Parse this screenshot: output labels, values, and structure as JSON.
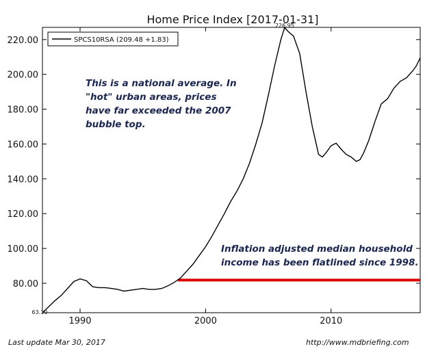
{
  "chart_data": {
    "type": "line",
    "title": "Home Price Index  [2017-01-31]",
    "xlabel": "",
    "ylabel": "",
    "xlim": [
      1987.0,
      2017.1
    ],
    "ylim": [
      63.1,
      227.0
    ],
    "x_ticks": [
      1990,
      2000,
      2010
    ],
    "y_ticks": [
      80,
      100,
      120,
      140,
      160,
      180,
      200,
      220
    ],
    "y_tick_labels": [
      "80.00",
      "100.00",
      "120.00",
      "140.00",
      "160.00",
      "180.00",
      "200.00",
      "220.00"
    ],
    "min_label": "63.10",
    "peak_label": "226.95",
    "grid": false,
    "legend_position": "top-left",
    "series": [
      {
        "name": "SPCS10RSA (209.48 +1.83)",
        "color": "#000000",
        "x": [
          1987.0,
          1987.5,
          1988.0,
          1988.5,
          1989.0,
          1989.5,
          1990.0,
          1990.5,
          1991.0,
          1991.5,
          1992.0,
          1992.5,
          1993.0,
          1993.5,
          1994.0,
          1994.5,
          1995.0,
          1995.5,
          1996.0,
          1996.5,
          1997.0,
          1997.5,
          1998.0,
          1998.5,
          1999.0,
          1999.5,
          2000.0,
          2000.5,
          2001.0,
          2001.5,
          2002.0,
          2002.5,
          2003.0,
          2003.5,
          2004.0,
          2004.5,
          2005.0,
          2005.5,
          2006.0,
          2006.3,
          2006.6,
          2007.0,
          2007.5,
          2008.0,
          2008.5,
          2009.0,
          2009.3,
          2009.6,
          2010.0,
          2010.4,
          2010.8,
          2011.2,
          2011.6,
          2012.0,
          2012.3,
          2012.6,
          2013.0,
          2013.5,
          2014.0,
          2014.5,
          2015.0,
          2015.5,
          2016.0,
          2016.5,
          2016.8,
          2017.1
        ],
        "values": [
          63.1,
          66.5,
          70.0,
          73.0,
          77.0,
          81.0,
          82.5,
          81.5,
          78.0,
          77.5,
          77.5,
          77.0,
          76.5,
          75.5,
          76.0,
          76.5,
          77.0,
          76.5,
          76.5,
          77.0,
          78.5,
          80.5,
          83.0,
          87.0,
          91.0,
          96.0,
          101.0,
          107.0,
          113.5,
          120.0,
          127.0,
          133.0,
          140.0,
          149.0,
          160.0,
          172.0,
          188.0,
          205.0,
          220.0,
          226.9,
          224.5,
          222.0,
          212.0,
          190.0,
          170.0,
          154.0,
          152.5,
          155.0,
          159.0,
          160.5,
          157.0,
          154.0,
          152.5,
          150.0,
          151.0,
          155.0,
          162.0,
          173.0,
          183.0,
          186.0,
          192.0,
          196.0,
          198.0,
          202.0,
          205.0,
          209.48
        ]
      }
    ],
    "reference_line": {
      "y": 81.8,
      "x_start": 1997.8,
      "x_end": 2017.1,
      "color": "#dd0000"
    },
    "annotations": [
      "This is a national average. In \"hot\" urban areas, prices have far exceeded the 2007 bubble top.",
      "Inflation adjusted median household income has been flatlined since 1998."
    ]
  },
  "annotation_lines": {
    "top": [
      "This is a national average. In",
      "\"hot\" urban areas, prices",
      "have far exceeded the 2007",
      "bubble top."
    ],
    "bottom": [
      "Inflation adjusted median household",
      "income has been flatlined since 1998."
    ]
  },
  "footer": {
    "last_update": "Last update Mar 30, 2017",
    "source": "http://www.mdbriefing.com"
  }
}
